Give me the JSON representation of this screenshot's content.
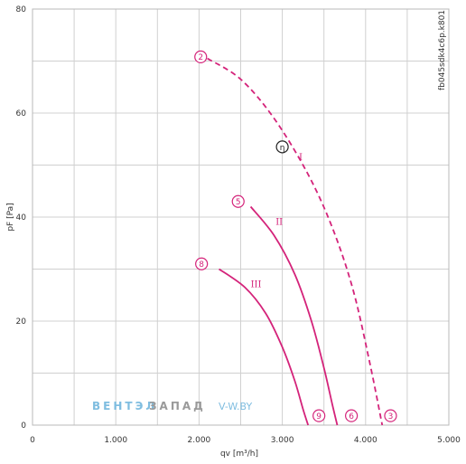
{
  "chart_data": {
    "type": "line",
    "xlabel": "qv [m³/h]",
    "ylabel": "pF [Pa]",
    "xlim": [
      0,
      5000
    ],
    "ylim": [
      0,
      80
    ],
    "x_ticks": [
      0,
      1000,
      2000,
      3000,
      4000,
      5000
    ],
    "x_tick_labels": [
      "0",
      "1.000",
      "2.000",
      "3.000",
      "4.000",
      "5.000"
    ],
    "y_ticks": [
      0,
      20,
      40,
      60,
      80
    ],
    "y_tick_labels": [
      "0",
      "20",
      "40",
      "60",
      "80"
    ],
    "grid": true,
    "code_label": "fb045sdk4c6p.k801",
    "efficiency_symbol": "η",
    "efficiency_point": {
      "x": 3000,
      "y": 53.5
    },
    "series": [
      {
        "name": "I",
        "style": "dashed",
        "color": "#d4237a",
        "label_point": {
          "x": 3200,
          "y": 51
        },
        "points": [
          [
            2100,
            70.5
          ],
          [
            2500,
            66.5
          ],
          [
            2900,
            59
          ],
          [
            3300,
            48.5
          ],
          [
            3600,
            38
          ],
          [
            3850,
            26
          ],
          [
            4050,
            12
          ],
          [
            4200,
            0
          ]
        ],
        "start_marker": {
          "label": "2",
          "x": 2020,
          "y": 70.8
        },
        "end_marker": {
          "label": "3",
          "x": 4300,
          "y": 1.8
        }
      },
      {
        "name": "II",
        "style": "solid",
        "color": "#d4237a",
        "label_point": {
          "x": 2920,
          "y": 38.5
        },
        "points": [
          [
            2620,
            42
          ],
          [
            2900,
            36.5
          ],
          [
            3150,
            29
          ],
          [
            3350,
            20
          ],
          [
            3500,
            11
          ],
          [
            3600,
            4
          ],
          [
            3660,
            0
          ]
        ],
        "start_marker": {
          "label": "5",
          "x": 2470,
          "y": 43
        },
        "end_marker": {
          "label": "6",
          "x": 3830,
          "y": 1.8
        }
      },
      {
        "name": "III",
        "style": "solid",
        "color": "#d4237a",
        "label_point": {
          "x": 2620,
          "y": 26.5
        },
        "points": [
          [
            2240,
            30
          ],
          [
            2550,
            26.5
          ],
          [
            2800,
            21.5
          ],
          [
            3000,
            15
          ],
          [
            3150,
            8.5
          ],
          [
            3250,
            3
          ],
          [
            3310,
            0
          ]
        ],
        "start_marker": {
          "label": "8",
          "x": 2030,
          "y": 31
        },
        "end_marker": {
          "label": "9",
          "x": 3440,
          "y": 1.8
        }
      }
    ]
  },
  "watermark": {
    "brand_blue": "ВЕНТЭЛ",
    "brand_gray": "ЗАПАД",
    "site": "V-W.BY",
    "blue_color": "#7fbde0",
    "gray_color": "#9a9a9a"
  }
}
